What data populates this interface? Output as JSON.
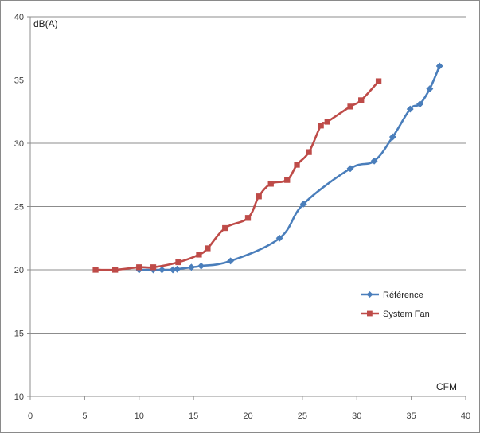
{
  "chart_data": {
    "type": "line",
    "title": "",
    "xlabel": "CFM",
    "ylabel": "dB(A)",
    "xlim": [
      0,
      40
    ],
    "ylim": [
      10,
      40
    ],
    "xticks": [
      0,
      5,
      10,
      15,
      20,
      25,
      30,
      35,
      40
    ],
    "yticks": [
      10,
      15,
      20,
      25,
      30,
      35,
      40
    ],
    "grid": "horizontal",
    "legend_position": "right",
    "series": [
      {
        "name": "Référence",
        "color": "#4a7ebb",
        "marker": "diamond",
        "x": [
          10.0,
          11.3,
          12.1,
          13.1,
          13.5,
          14.8,
          15.7,
          18.4,
          22.9,
          25.1,
          29.4,
          31.6,
          33.3,
          34.9,
          35.8,
          36.7,
          37.6
        ],
        "y": [
          20.0,
          20.0,
          20.0,
          20.0,
          20.05,
          20.2,
          20.3,
          20.7,
          22.5,
          25.2,
          28.0,
          28.6,
          30.5,
          32.7,
          33.1,
          34.3,
          36.1
        ]
      },
      {
        "name": "System Fan",
        "color": "#be4b48",
        "marker": "square",
        "x": [
          6.0,
          7.8,
          10.0,
          11.3,
          13.6,
          15.5,
          16.3,
          17.9,
          20.0,
          21.0,
          22.1,
          23.6,
          24.5,
          25.6,
          26.7,
          27.3,
          29.4,
          30.4,
          32.0
        ],
        "y": [
          20.0,
          20.0,
          20.2,
          20.2,
          20.6,
          21.2,
          21.7,
          23.3,
          24.1,
          25.8,
          26.8,
          27.1,
          28.3,
          29.3,
          31.4,
          31.7,
          32.9,
          33.4,
          34.9
        ]
      }
    ]
  }
}
